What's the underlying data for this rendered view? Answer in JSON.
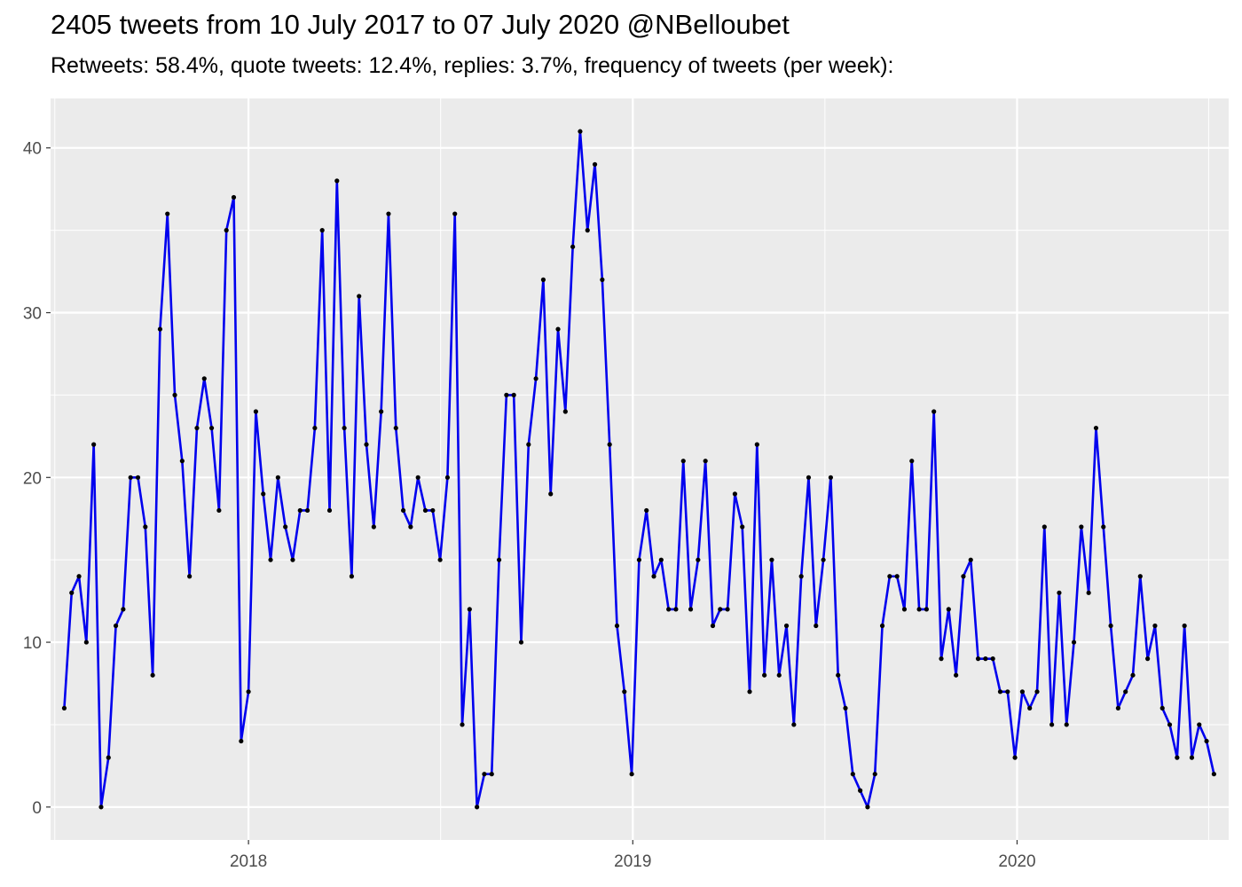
{
  "title": "2405 tweets from 10 July 2017 to 07 July 2020 @NBelloubet",
  "subtitle": "Retweets: 58.4%, quote tweets: 12.4%, replies: 3.7%, frequency of tweets (per week):",
  "colors": {
    "panel": "#ebebeb",
    "grid": "#ffffff",
    "line": "#0000ee",
    "point": "#000000"
  },
  "chart_data": {
    "type": "line",
    "title": "2405 tweets from 10 July 2017 to 07 July 2020 @NBelloubet",
    "subtitle": "Retweets: 58.4%, quote tweets: 12.4%, replies: 3.7%, frequency of tweets (per week):",
    "xlabel": "",
    "ylabel": "",
    "x_start": "2017-07-10",
    "x_step_days": 7,
    "xlim": [
      "2017-06-27",
      "2020-07-20"
    ],
    "ylim": [
      -2.0,
      43.0
    ],
    "x_ticks": [
      "2018",
      "2019",
      "2020"
    ],
    "x_tick_dates": [
      "2018-01-01",
      "2019-01-01",
      "2020-01-01"
    ],
    "y_ticks": [
      0,
      10,
      20,
      30,
      40
    ],
    "grid": true,
    "legend": "none",
    "series": [
      {
        "values": [
          6,
          13,
          14,
          10,
          22,
          0,
          3,
          11,
          12,
          20,
          20,
          17,
          8,
          29,
          36,
          25,
          21,
          14,
          23,
          26,
          23,
          18,
          35,
          37,
          4,
          7,
          24,
          19,
          15,
          20,
          17,
          15,
          18,
          18,
          23,
          35,
          18,
          38,
          23,
          14,
          31,
          22,
          17,
          24,
          36,
          23,
          18,
          17,
          20,
          18,
          18,
          15,
          20,
          36,
          5,
          12,
          0,
          2,
          2,
          15,
          25,
          25,
          10,
          22,
          26,
          32,
          19,
          29,
          24,
          34,
          41,
          35,
          39,
          32,
          22,
          11,
          7,
          2,
          15,
          18,
          14,
          15,
          12,
          12,
          21,
          12,
          15,
          21,
          11,
          12,
          12,
          19,
          17,
          7,
          22,
          8,
          15,
          8,
          11,
          5,
          14,
          20,
          11,
          15,
          20,
          8,
          6,
          2,
          1,
          0,
          2,
          11,
          14,
          14,
          12,
          21,
          12,
          12,
          24,
          9,
          12,
          8,
          14,
          15,
          9,
          9,
          9,
          7,
          7,
          3,
          7,
          6,
          7,
          17,
          5,
          13,
          5,
          10,
          17,
          13,
          23,
          17,
          11,
          6,
          7,
          8,
          14,
          9,
          11,
          6,
          5,
          3,
          11,
          3,
          5,
          4,
          2
        ]
      }
    ]
  }
}
